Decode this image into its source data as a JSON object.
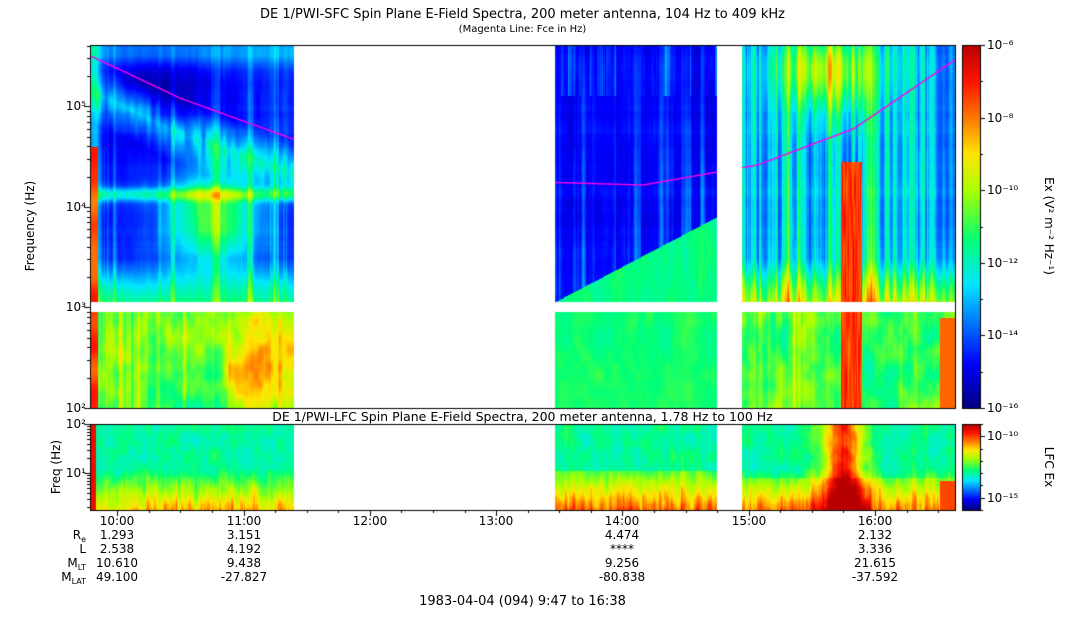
{
  "figure": {
    "caption": "1983-04-04 (094) 9:47 to 16:38"
  },
  "chart_data": [
    {
      "type": "heatmap",
      "title": "DE 1/PWI-SFC  Spin Plane E-Field Spectra, 200 meter antenna, 104 Hz to 409 kHz",
      "subtitle": "(Magenta Line: Fce in Hz)",
      "ylabel": "Frequency (Hz)",
      "ylim_log10": [
        2.0,
        5.61
      ],
      "y_ticks": [
        {
          "log10": 5,
          "label": "10⁵"
        },
        {
          "log10": 4,
          "label": "10⁴"
        },
        {
          "log10": 3,
          "label": "10³"
        },
        {
          "log10": 2,
          "label": "10²"
        }
      ],
      "x_start": "9:47",
      "x_end": "16:38",
      "x_ticks": [
        "10:00",
        "11:00",
        "12:00",
        "13:00",
        "14:00",
        "15:00",
        "16:00"
      ],
      "data_gaps_minutes": [
        [
          97,
          221
        ],
        [
          298,
          310
        ]
      ],
      "white_band_log10": [
        2.95,
        3.05
      ],
      "colorbar": {
        "label": "Ex (V² m⁻² Hz⁻¹)",
        "range_log10": [
          -16,
          -6
        ],
        "ticks": [
          {
            "log10": -6,
            "label": "10⁻⁶"
          },
          {
            "log10": -8,
            "label": "10⁻⁸"
          },
          {
            "log10": -10,
            "label": "10⁻¹⁰"
          },
          {
            "log10": -12,
            "label": "10⁻¹²"
          },
          {
            "log10": -14,
            "label": "10⁻¹⁴"
          },
          {
            "log10": -16,
            "label": "10⁻¹⁶"
          }
        ]
      },
      "overlay_line": {
        "name": "Fce",
        "color": "#ff00ee",
        "points_time_hz": [
          [
            "9:47",
            320000
          ],
          [
            "10:30",
            120000
          ],
          [
            "11:24",
            47000
          ],
          [
            "13:28",
            17500
          ],
          [
            "14:10",
            16500
          ],
          [
            "14:54",
            24000
          ],
          [
            "15:04",
            26000
          ],
          [
            "15:50",
            60000
          ],
          [
            "16:38",
            290000
          ]
        ]
      }
    },
    {
      "type": "heatmap",
      "title": "DE 1/PWI-LFC  Spin Plane E-Field Spectra, 200 meter antenna, 1.78 Hz to 100 Hz",
      "ylabel": "Freq (Hz)",
      "ylim_log10": [
        0.25,
        2.0
      ],
      "y_ticks": [
        {
          "log10": 2,
          "label": "10²"
        },
        {
          "log10": 1,
          "label": "10¹"
        }
      ],
      "colorbar": {
        "label": "LFC Ex",
        "range_log10": [
          -16,
          -9
        ],
        "ticks": [
          {
            "log10": -10,
            "label": "10⁻¹⁰"
          },
          {
            "log10": -15,
            "label": "10⁻¹⁵"
          }
        ]
      }
    }
  ],
  "ephemeris": {
    "columns_at": [
      "10:00",
      "11:00",
      "14:00",
      "16:00"
    ],
    "rows": [
      {
        "label": "R",
        "sub": "e",
        "values": [
          "1.293",
          "3.151",
          "4.474",
          "2.132"
        ]
      },
      {
        "label": "L",
        "sub": "",
        "values": [
          "2.538",
          "4.192",
          "****",
          "3.336"
        ]
      },
      {
        "label": "M",
        "sub": "LT",
        "values": [
          "10.610",
          "9.438",
          "9.256",
          "21.615"
        ]
      },
      {
        "label": "M",
        "sub": "LAT",
        "values": [
          "49.100",
          "-27.827",
          "-80.838",
          "-37.592"
        ]
      }
    ]
  }
}
